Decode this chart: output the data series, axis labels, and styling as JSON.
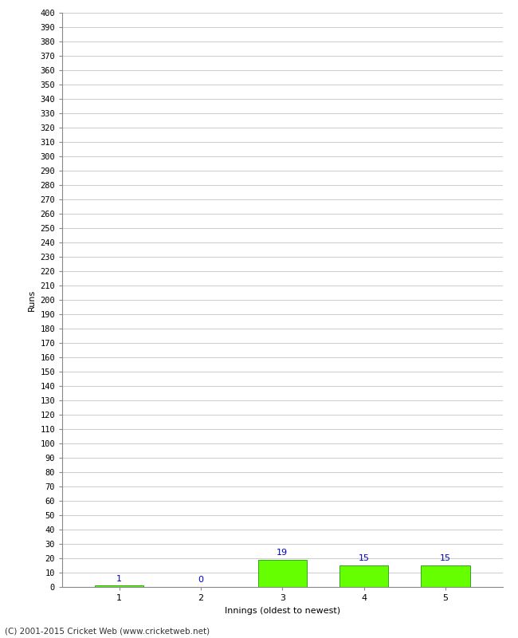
{
  "xlabel": "Innings (oldest to newest)",
  "ylabel": "Runs",
  "categories": [
    "1",
    "2",
    "3",
    "4",
    "5"
  ],
  "values": [
    1,
    0,
    19,
    15,
    15
  ],
  "bar_color": "#66ff00",
  "bar_edge_color": "#008000",
  "value_labels": [
    "1",
    "0",
    "19",
    "15",
    "15"
  ],
  "value_label_color": "#0000cc",
  "ylim": [
    0,
    400
  ],
  "background_color": "#ffffff",
  "grid_color": "#cccccc",
  "footer": "(C) 2001-2015 Cricket Web (www.cricketweb.net)"
}
